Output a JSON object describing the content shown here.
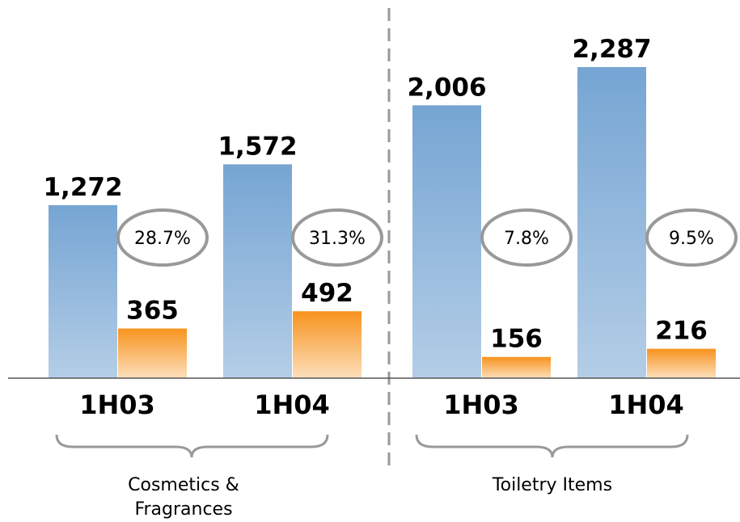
{
  "chart_data": {
    "type": "bar",
    "categories": [
      "1H03",
      "1H04",
      "1H03",
      "1H04"
    ],
    "groups": [
      "Cosmetics & Fragrances",
      "Toiletry Items"
    ],
    "series": [
      {
        "color": "#76a5d3",
        "values": [
          1272,
          1572,
          2006,
          2287
        ],
        "value_labels": [
          "1,272",
          "1,572",
          "2,006",
          "2,287"
        ]
      },
      {
        "color": "#f7931e",
        "values": [
          365,
          492,
          156,
          216
        ],
        "value_labels": [
          "365",
          "492",
          "156",
          "216"
        ]
      }
    ],
    "ratios": {
      "values": [
        28.7,
        31.3,
        7.8,
        9.5
      ],
      "value_labels": [
        "28.7%",
        "31.3%",
        "7.8%",
        "9.5%"
      ]
    }
  }
}
